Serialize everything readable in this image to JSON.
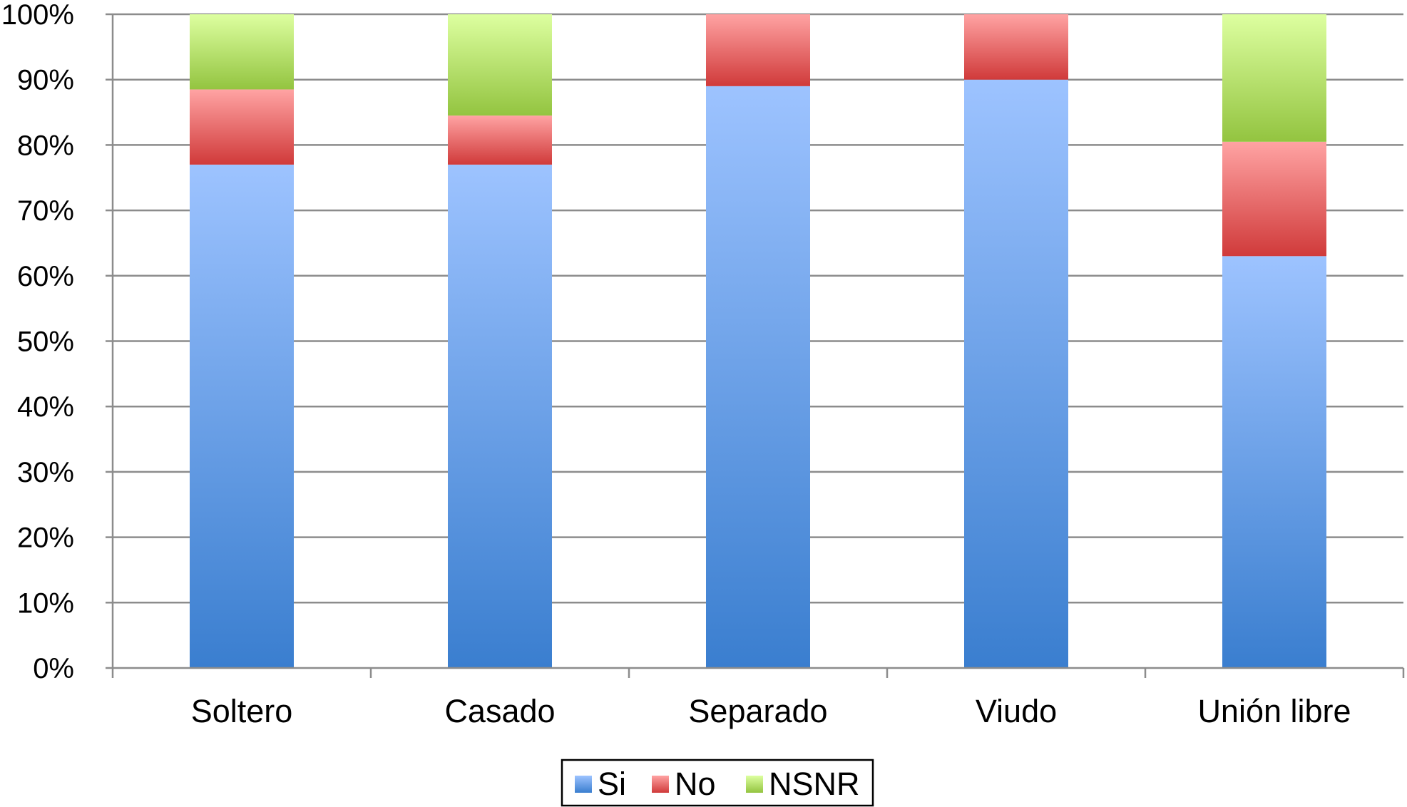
{
  "chart_data": {
    "type": "bar",
    "stacked": true,
    "percent": true,
    "categories": [
      "Soltero",
      "Casado",
      "Separado",
      "Viudo",
      "Unión libre"
    ],
    "series": [
      {
        "name": "Si",
        "values": [
          77,
          77,
          89,
          90,
          63
        ],
        "color_top": "#9DC3FF",
        "color_bottom": "#3A7ECF"
      },
      {
        "name": "No",
        "values": [
          11.5,
          7.5,
          11,
          10,
          17.5
        ],
        "color_top": "#FFA3A3",
        "color_bottom": "#D03A3A"
      },
      {
        "name": "NSNR",
        "values": [
          11.5,
          15.5,
          0,
          0,
          19.5
        ],
        "color_top": "#DDFFA0",
        "color_bottom": "#93C440"
      }
    ],
    "yticks": [
      "0%",
      "10%",
      "20%",
      "30%",
      "40%",
      "50%",
      "60%",
      "70%",
      "80%",
      "90%",
      "100%"
    ],
    "ylim": [
      0,
      100
    ],
    "grid": true,
    "legend_position": "bottom-center"
  }
}
